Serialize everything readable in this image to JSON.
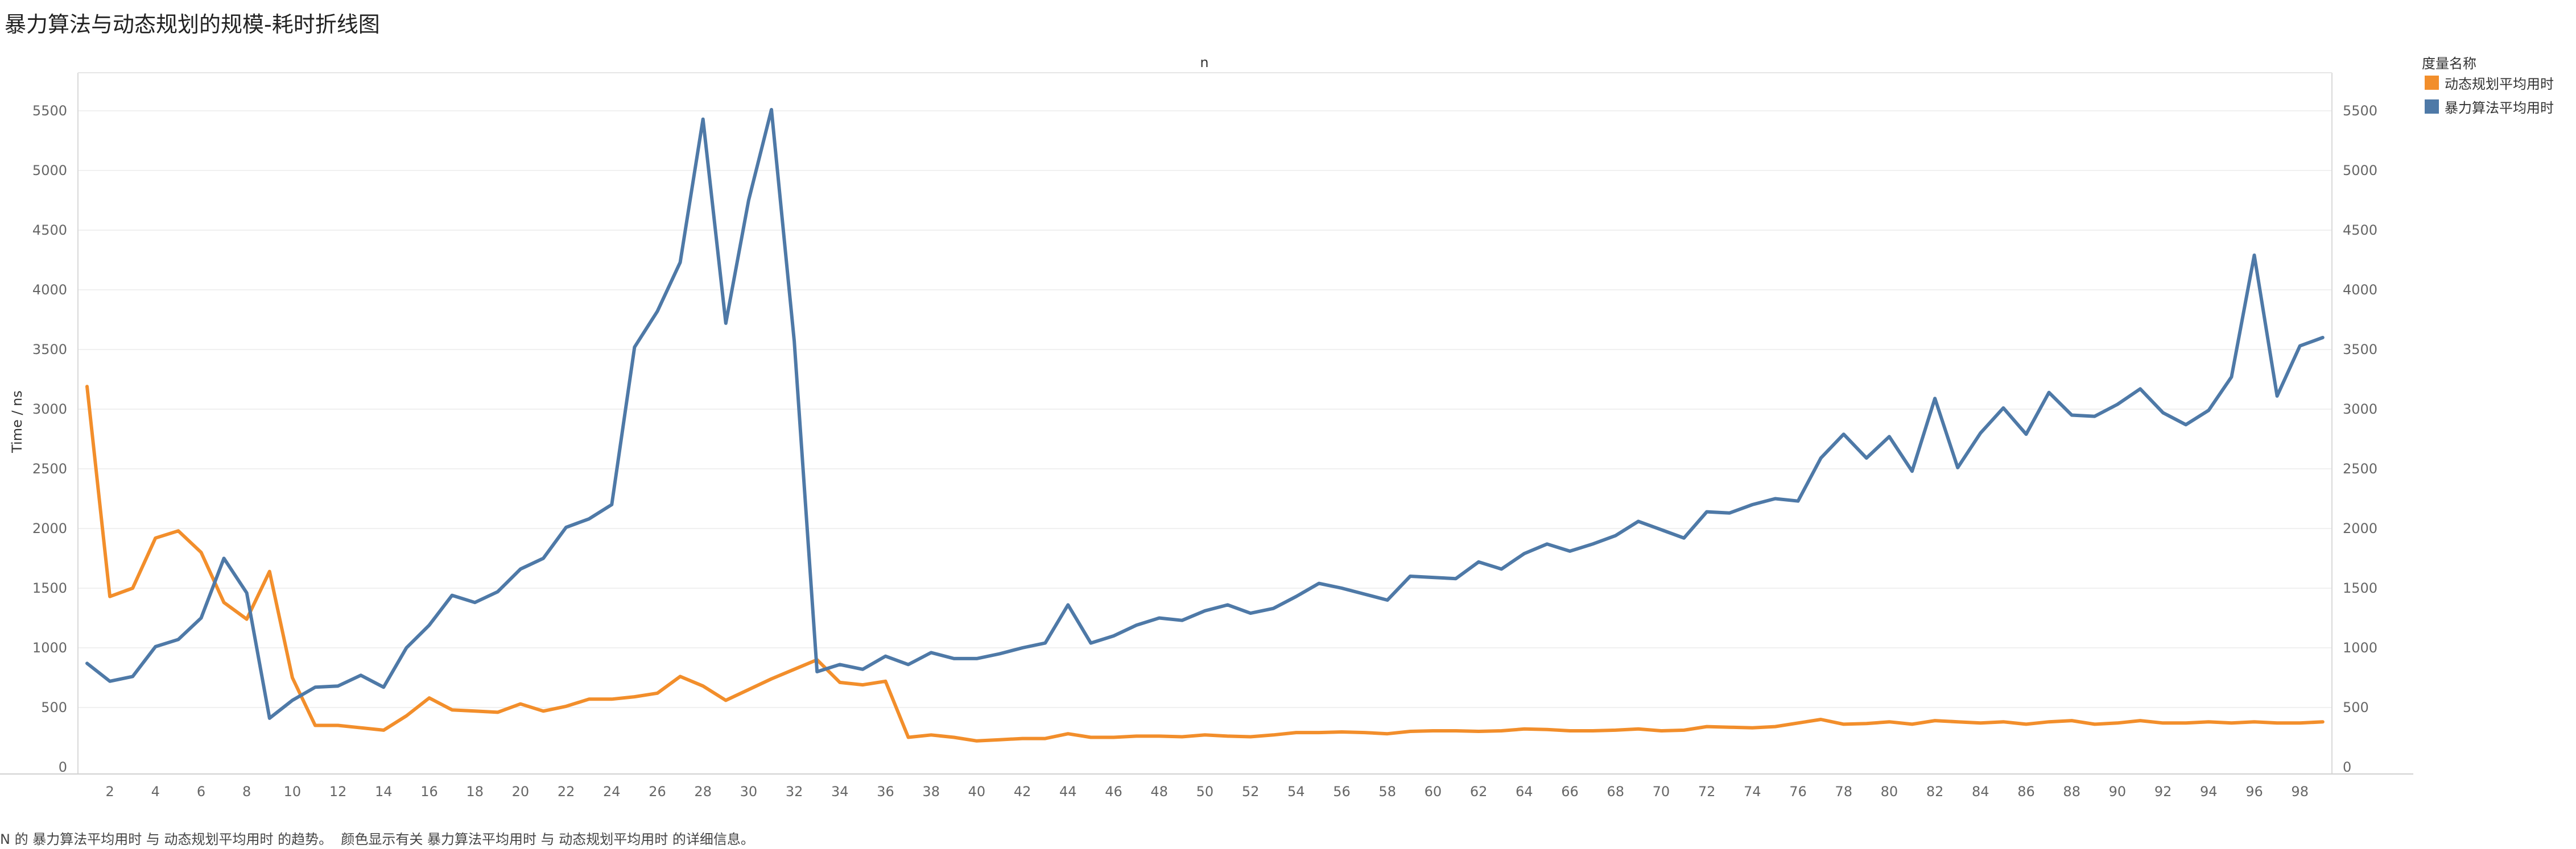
{
  "title": "暴力算法与动态规划的规模-耗时折线图",
  "legend": {
    "title": "度量名称",
    "items": [
      {
        "label": "动态规划平均用时",
        "color": "#F28E2B"
      },
      {
        "label": "暴力算法平均用时",
        "color": "#4E79A7"
      }
    ]
  },
  "caption": {
    "part1": "N 的 暴力算法平均用时 与 动态规划平均用时 的趋势。",
    "part2": "颜色显示有关 暴力算法平均用时 与 动态规划平均用时 的详细信息。"
  },
  "chart_data": {
    "type": "line",
    "title": "暴力算法与动态规划的规模-耗时折线图",
    "xlabel": "n",
    "ylabel": "Time / ns",
    "xlim": [
      1,
      99
    ],
    "ylim": [
      0,
      5800
    ],
    "x_ticks": [
      2,
      4,
      6,
      8,
      10,
      12,
      14,
      16,
      18,
      20,
      22,
      24,
      26,
      28,
      30,
      32,
      34,
      36,
      38,
      40,
      42,
      44,
      46,
      48,
      50,
      52,
      54,
      56,
      58,
      60,
      62,
      64,
      66,
      68,
      70,
      72,
      74,
      76,
      78,
      80,
      82,
      84,
      86,
      88,
      90,
      92,
      94,
      96,
      98
    ],
    "y_ticks": [
      0,
      500,
      1000,
      1500,
      2000,
      2500,
      3000,
      3500,
      4000,
      4500,
      5000,
      5500
    ],
    "dual_axis": true,
    "grid": true,
    "legend_position": "right",
    "x": [
      1,
      2,
      3,
      4,
      5,
      6,
      7,
      8,
      9,
      10,
      11,
      12,
      13,
      14,
      15,
      16,
      17,
      18,
      19,
      20,
      21,
      22,
      23,
      24,
      25,
      26,
      27,
      28,
      29,
      30,
      31,
      32,
      33,
      34,
      35,
      36,
      37,
      38,
      39,
      40,
      41,
      42,
      43,
      44,
      45,
      46,
      47,
      48,
      49,
      50,
      51,
      52,
      53,
      54,
      55,
      56,
      57,
      58,
      59,
      60,
      61,
      62,
      63,
      64,
      65,
      66,
      67,
      68,
      69,
      70,
      71,
      72,
      73,
      74,
      75,
      76,
      77,
      78,
      79,
      80,
      81,
      82,
      83,
      84,
      85,
      86,
      87,
      88,
      89,
      90,
      91,
      92,
      93,
      94,
      95,
      96,
      97,
      98,
      99
    ],
    "series": [
      {
        "name": "动态规划平均用时",
        "color": "#F28E2B",
        "values": [
          3190,
          1430,
          1500,
          1920,
          1980,
          1800,
          1380,
          1240,
          1640,
          750,
          350,
          350,
          330,
          310,
          430,
          580,
          480,
          470,
          460,
          530,
          470,
          510,
          570,
          570,
          590,
          620,
          760,
          680,
          560,
          650,
          740,
          820,
          900,
          710,
          690,
          720,
          250,
          270,
          250,
          220,
          230,
          240,
          240,
          280,
          250,
          250,
          260,
          260,
          255,
          270,
          260,
          255,
          270,
          290,
          290,
          295,
          290,
          280,
          300,
          305,
          305,
          300,
          305,
          320,
          315,
          305,
          305,
          310,
          320,
          305,
          310,
          340,
          335,
          330,
          340,
          370,
          400,
          360,
          365,
          380,
          360,
          390,
          380,
          370,
          380,
          360,
          380,
          390,
          360,
          370,
          390,
          370,
          370,
          380,
          370,
          380,
          370,
          370,
          380
        ]
      },
      {
        "name": "暴力算法平均用时",
        "color": "#4E79A7",
        "values": [
          870,
          720,
          760,
          1010,
          1070,
          1250,
          1750,
          1460,
          410,
          560,
          670,
          680,
          770,
          670,
          1000,
          1190,
          1440,
          1380,
          1470,
          1660,
          1750,
          2010,
          2080,
          2200,
          3520,
          3820,
          4230,
          5430,
          3720,
          4750,
          5510,
          3570,
          800,
          860,
          820,
          930,
          860,
          960,
          910,
          910,
          950,
          1000,
          1040,
          1360,
          1040,
          1100,
          1190,
          1250,
          1230,
          1310,
          1360,
          1290,
          1330,
          1430,
          1540,
          1500,
          1450,
          1400,
          1600,
          1590,
          1580,
          1720,
          1660,
          1790,
          1870,
          1810,
          1870,
          1940,
          2060,
          1990,
          1920,
          2140,
          2130,
          2200,
          2250,
          2230,
          2590,
          2790,
          2590,
          2770,
          2480,
          3090,
          2510,
          2800,
          3010,
          2790,
          3140,
          2950,
          2940,
          3040,
          3170,
          2970,
          2870,
          2990,
          3270,
          4290,
          3110,
          3530,
          3600
        ]
      }
    ]
  }
}
